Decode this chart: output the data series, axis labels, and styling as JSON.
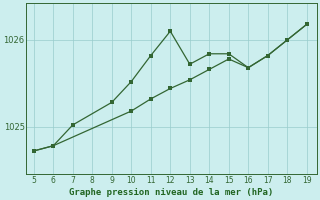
{
  "x_line1": [
    5,
    6,
    7,
    9,
    10,
    11,
    12,
    13,
    14,
    15,
    16,
    17,
    18,
    19
  ],
  "y_line1": [
    1024.72,
    1024.78,
    1025.02,
    1025.28,
    1025.52,
    1025.82,
    1026.1,
    1025.72,
    1025.84,
    1025.84,
    1025.68,
    1025.82,
    1026.0,
    1026.18
  ],
  "x_line2": [
    5,
    6,
    10,
    11,
    12,
    13,
    14,
    15,
    16,
    17,
    18,
    19
  ],
  "y_line2": [
    1024.72,
    1024.78,
    1025.18,
    1025.32,
    1025.44,
    1025.54,
    1025.66,
    1025.78,
    1025.68,
    1025.82,
    1026.0,
    1026.18
  ],
  "line_color": "#336633",
  "bg_color": "#cceeee",
  "grid_color": "#99cccc",
  "xlabel": "Graphe pression niveau de la mer (hPa)",
  "ytick_labels": [
    "1025",
    "1026"
  ],
  "ytick_vals": [
    1025.0,
    1026.0
  ],
  "xtick_vals": [
    5,
    6,
    7,
    8,
    9,
    10,
    11,
    12,
    13,
    14,
    15,
    16,
    17,
    18,
    19
  ],
  "xlim": [
    4.6,
    19.5
  ],
  "ylim": [
    1024.45,
    1026.42
  ],
  "xlabel_color": "#226622",
  "border_color": "#336633",
  "marker_size": 2.5,
  "line_width": 0.9
}
